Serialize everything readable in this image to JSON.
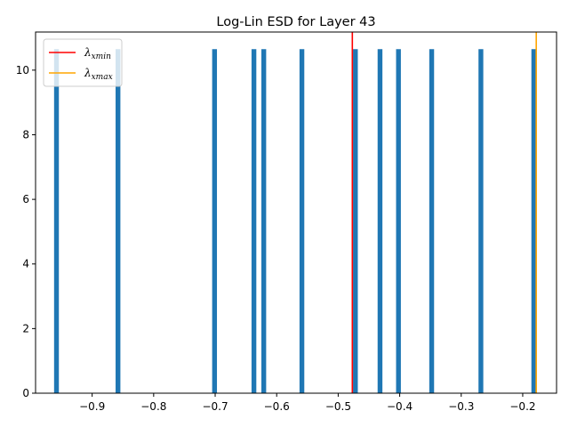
{
  "chart_data": {
    "type": "bar",
    "title": "Log-Lin ESD for Layer 43",
    "xlabel": "",
    "ylabel": "",
    "xlim": [
      -0.992,
      -0.145
    ],
    "ylim": [
      0,
      11.18
    ],
    "grid": false,
    "bar_color": "#1f77b4",
    "bar_width": 0.0078,
    "bars": [
      {
        "x": -0.958,
        "height": 10.65
      },
      {
        "x": -0.858,
        "height": 10.65
      },
      {
        "x": -0.701,
        "height": 10.65
      },
      {
        "x": -0.637,
        "height": 10.65
      },
      {
        "x": -0.621,
        "height": 10.65
      },
      {
        "x": -0.559,
        "height": 10.65
      },
      {
        "x": -0.472,
        "height": 10.65
      },
      {
        "x": -0.432,
        "height": 10.65
      },
      {
        "x": -0.402,
        "height": 10.65
      },
      {
        "x": -0.348,
        "height": 10.65
      },
      {
        "x": -0.268,
        "height": 10.65
      },
      {
        "x": -0.182,
        "height": 10.65
      }
    ],
    "vlines": [
      {
        "x": -0.477,
        "color": "#ff0000",
        "label_main": "λ",
        "label_sub": "xmin"
      },
      {
        "x": -0.178,
        "color": "#ffa500",
        "label_main": "λ",
        "label_sub": "xmax"
      }
    ],
    "xticks": [
      {
        "value": -0.9,
        "label": "−0.9"
      },
      {
        "value": -0.8,
        "label": "−0.8"
      },
      {
        "value": -0.7,
        "label": "−0.7"
      },
      {
        "value": -0.6,
        "label": "−0.6"
      },
      {
        "value": -0.5,
        "label": "−0.5"
      },
      {
        "value": -0.4,
        "label": "−0.4"
      },
      {
        "value": -0.3,
        "label": "−0.3"
      },
      {
        "value": -0.2,
        "label": "−0.2"
      }
    ],
    "yticks": [
      {
        "value": 0,
        "label": "0"
      },
      {
        "value": 2,
        "label": "2"
      },
      {
        "value": 4,
        "label": "4"
      },
      {
        "value": 6,
        "label": "6"
      },
      {
        "value": 8,
        "label": "8"
      },
      {
        "value": 10,
        "label": "10"
      }
    ],
    "legend_position": "top-left"
  }
}
